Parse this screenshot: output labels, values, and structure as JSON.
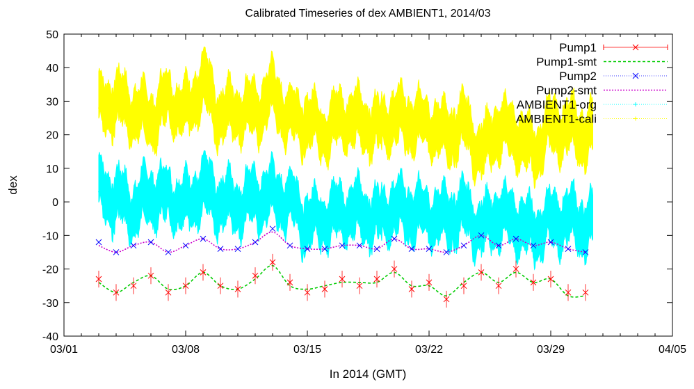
{
  "chart_data": {
    "type": "scatter",
    "title": "Calibrated Timeseries of dex AMBIENT1, 2014/03",
    "xlabel": "In 2014 (GMT)",
    "ylabel": "dex",
    "xlim": [
      "2014-03-01",
      "2014-04-05"
    ],
    "ylim": [
      -40,
      50
    ],
    "x_ticks": [
      {
        "date": "2014-03-01",
        "label": "03/01"
      },
      {
        "date": "2014-03-08",
        "label": "03/08"
      },
      {
        "date": "2014-03-15",
        "label": "03/15"
      },
      {
        "date": "2014-03-22",
        "label": "03/22"
      },
      {
        "date": "2014-03-29",
        "label": "03/29"
      },
      {
        "date": "2014-04-05",
        "label": "04/05"
      }
    ],
    "y_ticks": [
      -40,
      -30,
      -20,
      -10,
      0,
      10,
      20,
      30,
      40,
      50
    ],
    "grid": false,
    "legend_position": "top-right",
    "series": [
      {
        "name": "Pump1",
        "kind": "points-errorbars",
        "marker": "x",
        "color": "#ff0000",
        "x": [
          "2014-03-03",
          "2014-03-04",
          "2014-03-05",
          "2014-03-06",
          "2014-03-07",
          "2014-03-08",
          "2014-03-09",
          "2014-03-10",
          "2014-03-11",
          "2014-03-12",
          "2014-03-13",
          "2014-03-14",
          "2014-03-15",
          "2014-03-16",
          "2014-03-17",
          "2014-03-18",
          "2014-03-19",
          "2014-03-20",
          "2014-03-21",
          "2014-03-22",
          "2014-03-23",
          "2014-03-24",
          "2014-03-25",
          "2014-03-26",
          "2014-03-27",
          "2014-03-28",
          "2014-03-29",
          "2014-03-30",
          "2014-03-31"
        ],
        "y": [
          -23,
          -27,
          -25,
          -22,
          -27,
          -25,
          -21,
          -25,
          -26,
          -22,
          -18,
          -24,
          -27,
          -26,
          -23,
          -25,
          -23,
          -20,
          -26,
          -24,
          -29,
          -25,
          -21,
          -25,
          -20,
          -24,
          -23,
          -27,
          -27
        ]
      },
      {
        "name": "Pump1-smt",
        "kind": "line",
        "dash": "dashed",
        "color": "#00cc00",
        "x": [
          "2014-03-03",
          "2014-03-04",
          "2014-03-05",
          "2014-03-06",
          "2014-03-07",
          "2014-03-08",
          "2014-03-09",
          "2014-03-10",
          "2014-03-11",
          "2014-03-12",
          "2014-03-13",
          "2014-03-14",
          "2014-03-15",
          "2014-03-16",
          "2014-03-17",
          "2014-03-18",
          "2014-03-19",
          "2014-03-20",
          "2014-03-21",
          "2014-03-22",
          "2014-03-23",
          "2014-03-24",
          "2014-03-25",
          "2014-03-26",
          "2014-03-27",
          "2014-03-28",
          "2014-03-29",
          "2014-03-30",
          "2014-03-31"
        ],
        "y": [
          -24,
          -27,
          -24,
          -22,
          -26,
          -25,
          -21,
          -25,
          -26,
          -23,
          -19,
          -25,
          -26,
          -25,
          -24,
          -24,
          -24,
          -21,
          -25,
          -25,
          -28,
          -24,
          -21,
          -24,
          -21,
          -24,
          -23,
          -28,
          -28
        ]
      },
      {
        "name": "Pump2",
        "kind": "points",
        "marker": "x",
        "color": "#0000ff",
        "x": [
          "2014-03-03",
          "2014-03-04",
          "2014-03-05",
          "2014-03-06",
          "2014-03-07",
          "2014-03-08",
          "2014-03-09",
          "2014-03-10",
          "2014-03-11",
          "2014-03-12",
          "2014-03-13",
          "2014-03-14",
          "2014-03-15",
          "2014-03-16",
          "2014-03-17",
          "2014-03-18",
          "2014-03-19",
          "2014-03-20",
          "2014-03-21",
          "2014-03-22",
          "2014-03-23",
          "2014-03-24",
          "2014-03-25",
          "2014-03-26",
          "2014-03-27",
          "2014-03-28",
          "2014-03-29",
          "2014-03-30",
          "2014-03-31"
        ],
        "y": [
          -12,
          -15,
          -13,
          -12,
          -15,
          -13,
          -11,
          -14,
          -14,
          -12,
          -8,
          -13,
          -14,
          -14,
          -13,
          -13,
          -14,
          -11,
          -14,
          -14,
          -15,
          -13,
          -10,
          -13,
          -11,
          -13,
          -12,
          -14,
          -15
        ]
      },
      {
        "name": "Pump2-smt",
        "kind": "line",
        "dash": "dotted",
        "color": "#cc00cc",
        "x": [
          "2014-03-03",
          "2014-03-04",
          "2014-03-05",
          "2014-03-06",
          "2014-03-07",
          "2014-03-08",
          "2014-03-09",
          "2014-03-10",
          "2014-03-11",
          "2014-03-12",
          "2014-03-13",
          "2014-03-14",
          "2014-03-15",
          "2014-03-16",
          "2014-03-17",
          "2014-03-18",
          "2014-03-19",
          "2014-03-20",
          "2014-03-21",
          "2014-03-22",
          "2014-03-23",
          "2014-03-24",
          "2014-03-25",
          "2014-03-26",
          "2014-03-27",
          "2014-03-28",
          "2014-03-29",
          "2014-03-30",
          "2014-03-31"
        ],
        "y": [
          -13,
          -15,
          -13,
          -12,
          -15,
          -13,
          -11,
          -14,
          -14,
          -12,
          -9,
          -13,
          -14,
          -14,
          -13,
          -13,
          -14,
          -11,
          -14,
          -14,
          -15,
          -13,
          -10,
          -13,
          -11,
          -13,
          -12,
          -14,
          -15
        ]
      },
      {
        "name": "AMBIENT1-org",
        "kind": "dense-band",
        "color": "#00ffff",
        "x": [
          "2014-03-03",
          "2014-03-04",
          "2014-03-05",
          "2014-03-06",
          "2014-03-07",
          "2014-03-08",
          "2014-03-09",
          "2014-03-10",
          "2014-03-11",
          "2014-03-12",
          "2014-03-13",
          "2014-03-14",
          "2014-03-15",
          "2014-03-16",
          "2014-03-17",
          "2014-03-18",
          "2014-03-19",
          "2014-03-20",
          "2014-03-21",
          "2014-03-22",
          "2014-03-23",
          "2014-03-24",
          "2014-03-25",
          "2014-03-26",
          "2014-03-27",
          "2014-03-28",
          "2014-03-29",
          "2014-03-30",
          "2014-03-31"
        ],
        "y": [
          3,
          1,
          -2,
          2,
          1,
          -1,
          4,
          0,
          -1,
          1,
          2,
          0,
          -6,
          -5,
          -3,
          -3,
          -5,
          -2,
          -3,
          -4,
          -5,
          -3,
          -8,
          -4,
          -6,
          -9,
          -6,
          -5,
          -7
        ]
      },
      {
        "name": "AMBIENT1-cali",
        "kind": "dense-band",
        "color": "#ffff00",
        "x": [
          "2014-03-03",
          "2014-03-04",
          "2014-03-05",
          "2014-03-06",
          "2014-03-07",
          "2014-03-08",
          "2014-03-09",
          "2014-03-10",
          "2014-03-11",
          "2014-03-12",
          "2014-03-13",
          "2014-03-14",
          "2014-03-15",
          "2014-03-16",
          "2014-03-17",
          "2014-03-18",
          "2014-03-19",
          "2014-03-20",
          "2014-03-21",
          "2014-03-22",
          "2014-03-23",
          "2014-03-24",
          "2014-03-25",
          "2014-03-26",
          "2014-03-27",
          "2014-03-28",
          "2014-03-29",
          "2014-03-30",
          "2014-03-31"
        ],
        "y": [
          28,
          30,
          27,
          25,
          30,
          27,
          35,
          26,
          27,
          27,
          32,
          25,
          24,
          21,
          25,
          24,
          22,
          25,
          24,
          23,
          20,
          23,
          15,
          22,
          20,
          15,
          22,
          22,
          20
        ]
      }
    ]
  }
}
